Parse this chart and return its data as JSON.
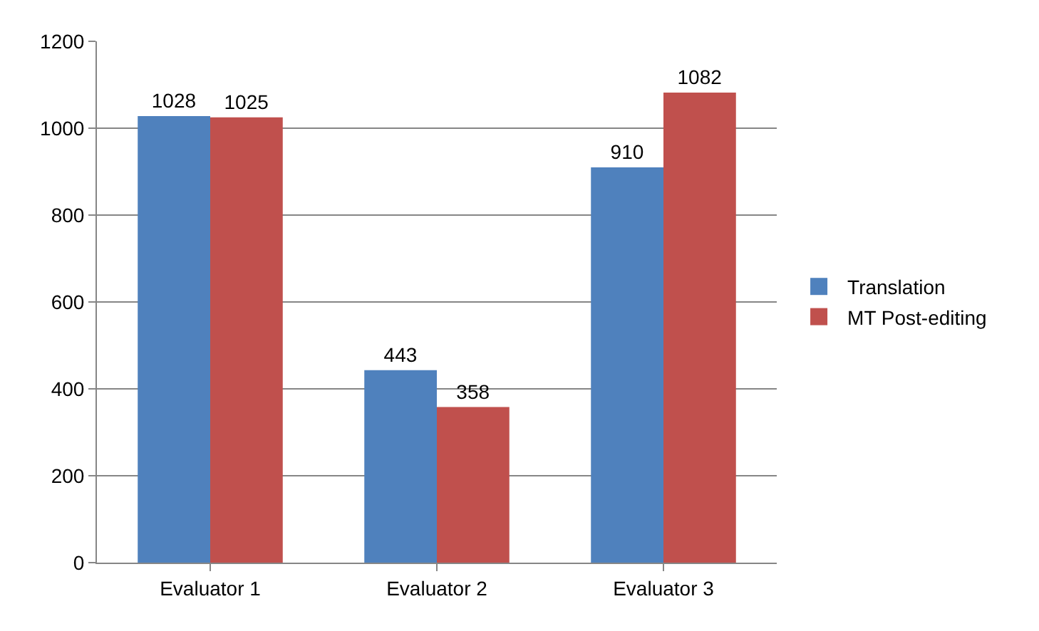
{
  "chart_data": {
    "type": "bar",
    "categories": [
      "Evaluator 1",
      "Evaluator 2",
      "Evaluator 3"
    ],
    "series": [
      {
        "name": "Translation",
        "color": "#4f81bd",
        "values": [
          1028,
          443,
          910
        ]
      },
      {
        "name": "MT Post-editing",
        "color": "#c0504d",
        "values": [
          1025,
          358,
          1082
        ]
      }
    ],
    "ylim": [
      0,
      1200
    ],
    "yticks": [
      0,
      200,
      400,
      600,
      800,
      1000,
      1200
    ],
    "grid": "y",
    "legend": "right",
    "data_labels": true
  }
}
